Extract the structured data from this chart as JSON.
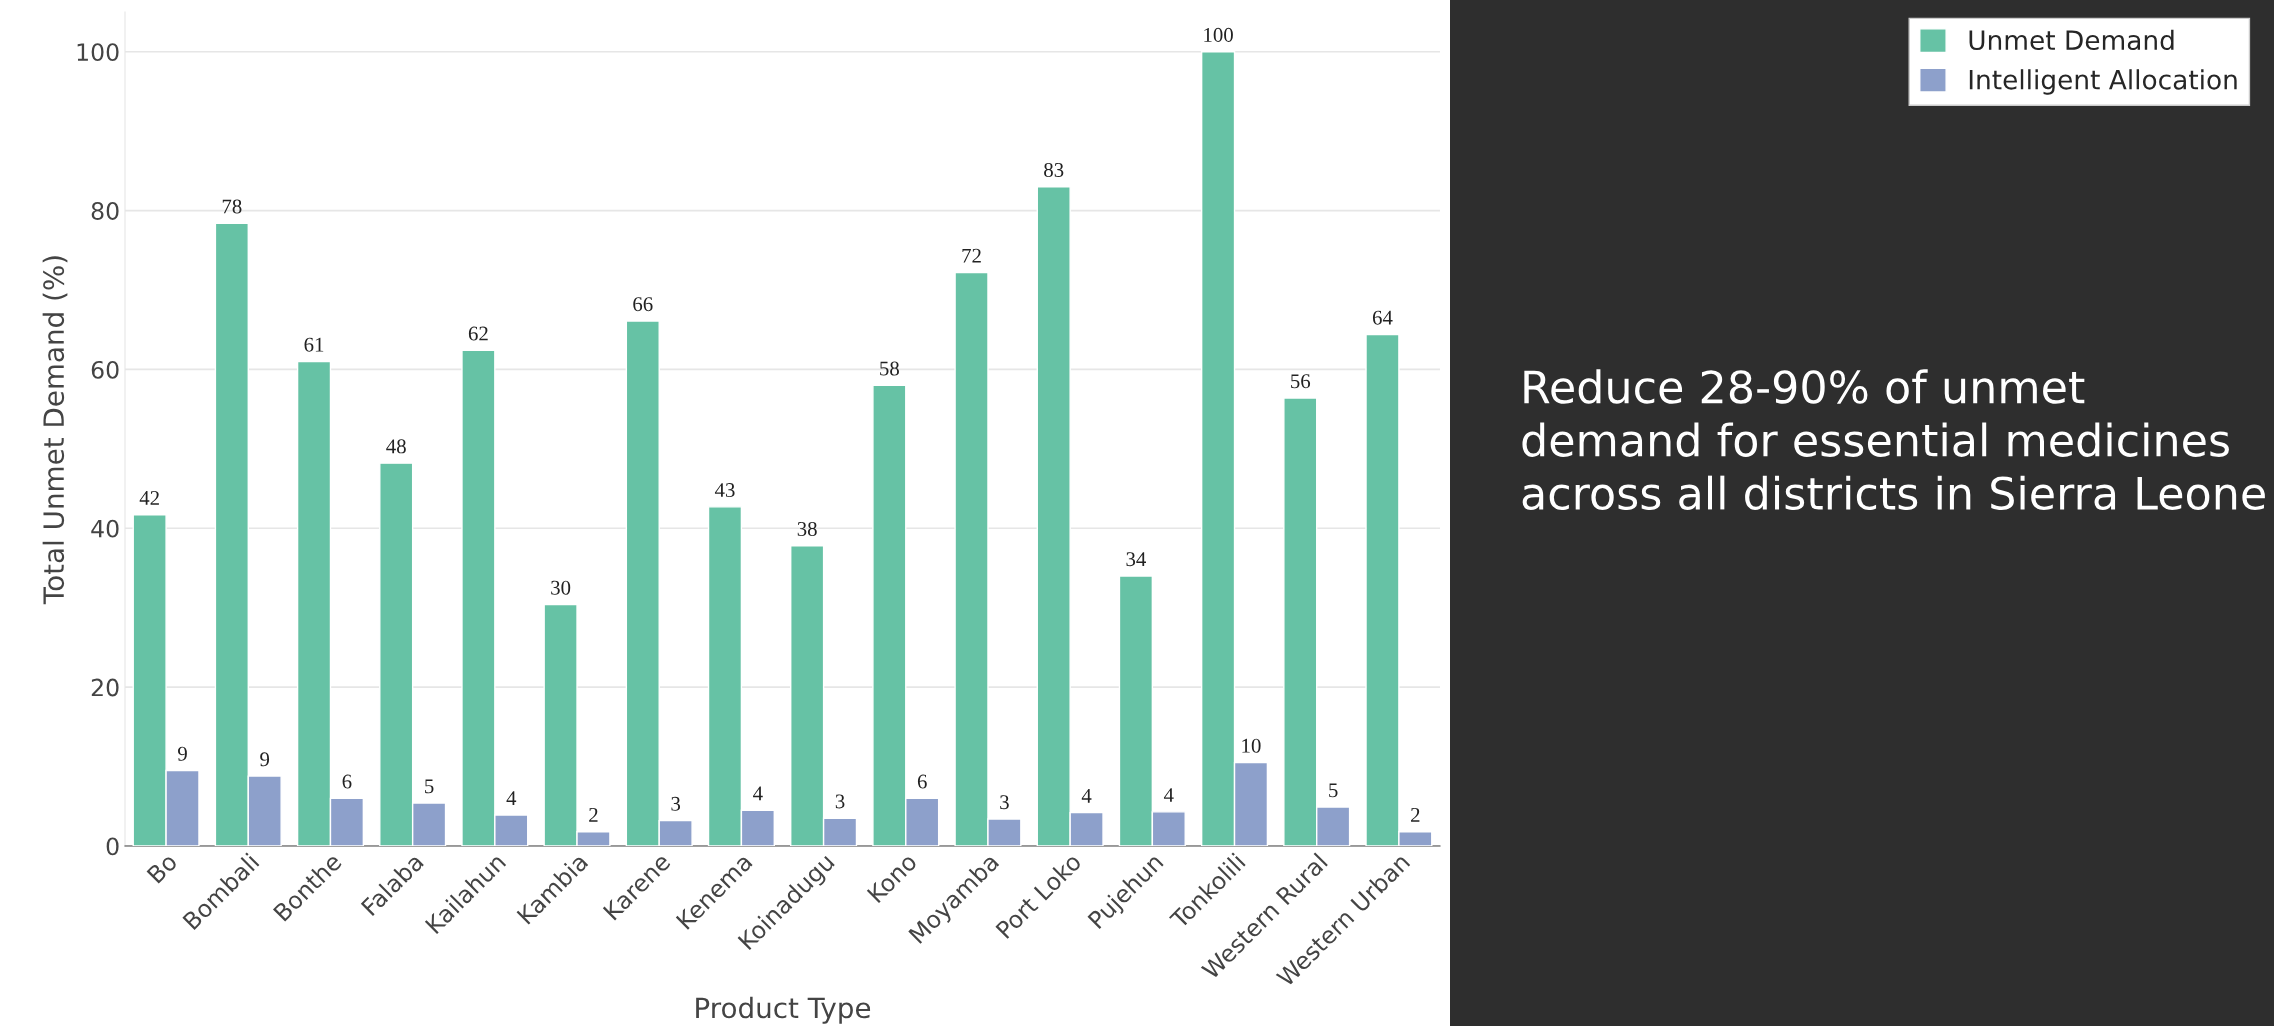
{
  "chart_data": {
    "type": "bar",
    "xlabel": "Product Type",
    "ylabel": "Total Unmet Demand (%)",
    "categories": [
      "Bo",
      "Bombali",
      "Bonthe",
      "Falaba",
      "Kailahun",
      "Kambia",
      "Karene",
      "Kenema",
      "Koinadugu",
      "Kono",
      "Moyamba",
      "Port Loko",
      "Pujehun",
      "Tonkolili",
      "Western Rural",
      "Western Urban"
    ],
    "series": [
      {
        "name": "Unmet Demand",
        "color": "#66c2a5",
        "values": [
          41.7,
          78.4,
          61.0,
          48.2,
          62.4,
          30.4,
          66.1,
          42.7,
          37.8,
          58.0,
          72.2,
          83.0,
          34.0,
          100.0,
          56.4,
          64.4
        ],
        "value_labels": [
          "42",
          "78",
          "61",
          "48",
          "62",
          "30",
          "66",
          "43",
          "38",
          "58",
          "72",
          "83",
          "34",
          "100",
          "56",
          "64"
        ]
      },
      {
        "name": "Intelligent Allocation",
        "color": "#8da0cb",
        "values": [
          9.5,
          8.8,
          6.0,
          5.4,
          3.9,
          1.8,
          3.2,
          4.5,
          3.5,
          6.0,
          3.4,
          4.2,
          4.3,
          10.5,
          4.9,
          1.8
        ],
        "value_labels": [
          "9",
          "9",
          "6",
          "5",
          "4",
          "2",
          "3",
          "4",
          "3",
          "6",
          "3",
          "4",
          "4",
          "10",
          "5",
          "2"
        ]
      }
    ],
    "ylim": [
      0,
      105
    ],
    "yticks": [
      0,
      20,
      40,
      60,
      80,
      100
    ],
    "grid": "y",
    "legend": "top right",
    "annotations": [
      "Reduce 28-90% of unmet demand for essential medicines across all districts in Sierra Leone"
    ]
  }
}
